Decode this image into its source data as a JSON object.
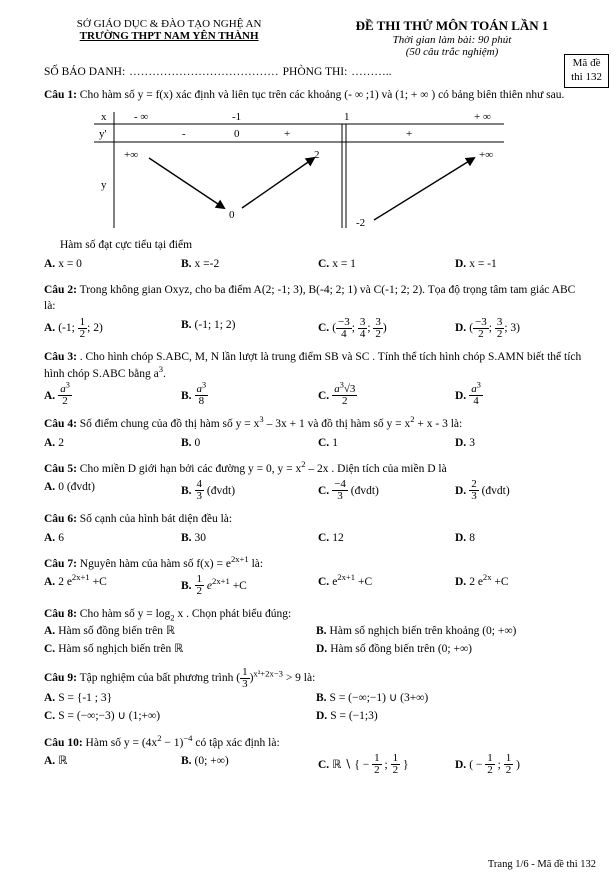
{
  "header": {
    "dept": "SỞ GIÁO DỤC & ĐÀO TẠO NGHỆ AN",
    "school": "TRƯỜNG THPT NAM YÊN THÀNH",
    "title": "ĐỀ THI THỬ MÔN TOÁN LẦN 1",
    "time": "Thời gian làm bài:  90 phút",
    "count": "(50 câu trắc nghiệm)"
  },
  "exam_row": {
    "sbd": "SỐ BÁO DANH:",
    "sbd_fill": "…………………………………",
    "phong": "PHÒNG THI:",
    "phong_fill": "………..",
    "madebox_l1": "Mã đề",
    "madebox_l2": "thi 132"
  },
  "chart": {
    "x_label": "x",
    "yp_label": "y'",
    "y_label": "y",
    "cols": [
      "- ∞",
      "-1",
      "1",
      "+ ∞"
    ],
    "signs": [
      "-",
      "0",
      "+",
      "+"
    ],
    "plus_inf": "+∞",
    "neg2": "-2",
    "zero": "0",
    "two": "2",
    "line_color": "#000"
  },
  "q1": {
    "label": "Câu 1:",
    "text": " Cho hàm số y = f(x) xác định và liên tục trên các khoảng (- ∞ ;1) và (1; + ∞ ) có bảng biên thiên như sau.",
    "sub": "Hàm số đạt cực tiểu tại điểm",
    "A": "x = 0",
    "B": "x =-2",
    "C": "x = 1",
    "D": "x = -1"
  },
  "q2": {
    "label": "Câu 2:",
    "text": " Trong không gian Oxyz, cho ba điểm A(2; -1; 3), B(-4; 2; 1) và C(-1; 2; 2). Tọa độ trọng tâm tam giác ABC là:",
    "A_html": "(-1; <span class=\"frac\"><span class=\"n\">1</span><span class=\"d\">2</span></span>; 2)",
    "B_html": "(-1; 1; 2)",
    "C_html": "(<span class=\"frac\"><span class=\"n\">−3</span><span class=\"d\">4</span></span>; <span class=\"frac\"><span class=\"n\">3</span><span class=\"d\">4</span></span>; <span class=\"frac\"><span class=\"n\">3</span><span class=\"d\">2</span></span>)",
    "D_html": "(<span class=\"frac\"><span class=\"n\">−3</span><span class=\"d\">2</span></span>; <span class=\"frac\"><span class=\"n\">3</span><span class=\"d\">2</span></span>; 3)"
  },
  "q3": {
    "label": "Câu 3:",
    "text": " . Cho hình chóp S.ABC, M, N lần lượt là trung điểm SB và SC . Tính thể tích hình chóp S.AMN biết thể tích hình chóp S.ABC bằng a",
    "sup": "3",
    "text2": ".",
    "A_html": "<span class=\"frac\"><span class=\"n\"><i>a</i><sup>3</sup></span><span class=\"d\">2</span></span>",
    "B_html": "<span class=\"frac\"><span class=\"n\"><i>a</i><sup>3</sup></span><span class=\"d\">8</span></span>",
    "C_html": "<span class=\"frac\"><span class=\"n\"><i>a</i><sup>3</sup>√3</span><span class=\"d\">2</span></span>",
    "D_html": "<span class=\"frac\"><span class=\"n\"><i>a</i><sup>3</sup></span><span class=\"d\">4</span></span>"
  },
  "q4": {
    "label": "Câu 4:",
    "text": " Số điểm chung của đồ thị hàm số y = x",
    "sup1": "3",
    "text2": " – 3x + 1 và đồ thị hàm số y = x",
    "sup2": "2",
    "text3": " + x  - 3 là:",
    "A": "2",
    "B": "0",
    "C": "1",
    "D": "3"
  },
  "q5": {
    "label": "Câu 5:",
    "text": " Cho miền D giới hạn bởi các đường y = 0, y = x",
    "sup": "2",
    "text2": " – 2x . Diện tích của miền D là",
    "A": "0 (đvdt)",
    "B_html": "<span class=\"frac\"><span class=\"n\">4</span><span class=\"d\">3</span></span> (đvdt)",
    "C_html": "<span class=\"frac\"><span class=\"n\">−4</span><span class=\"d\">3</span></span> (đvdt)",
    "D_html": "<span class=\"frac\"><span class=\"n\">2</span><span class=\"d\">3</span></span> (đvdt)"
  },
  "q6": {
    "label": "Câu 6:",
    "text": " Số cạnh của hình bát diện đều là:",
    "A": "6",
    "B": "30",
    "C": "12",
    "D": "8"
  },
  "q7": {
    "label": "Câu 7:",
    "text": " Nguyên hàm của hàm số f(x) = e",
    "sup": "2x+1",
    "text2": " là:",
    "A_html": "2 e<sup>2x+1</sup> +C",
    "B_html": "<span class=\"frac\"><span class=\"n\">1</span><span class=\"d\">2</span></span> <i>e</i><sup>2x+1</sup> +C",
    "C_html": "e<sup>2x+1</sup> +C",
    "D_html": "2 e<sup>2x</sup> +C"
  },
  "q8": {
    "label": "Câu 8:",
    "text": " Cho hàm số  y = log",
    "sub": "2",
    "text2": " x . Chọn phát biểu đúng:",
    "A": "Hàm số đồng biến trên  ℝ",
    "B": "Hàm số nghịch biến trên khoảng (0; +∞)",
    "C": "Hàm số nghịch biến trên  ℝ",
    "D": "Hàm số đồng biến trên (0; +∞)"
  },
  "q9": {
    "label": "Câu 9:",
    "text": " Tập nghiệm của bất phương trình  (",
    "frac_html": "<span class=\"frac\"><span class=\"n\">1</span><span class=\"d\">3</span></span>",
    "text2": ")",
    "sup": "x²+2x−3",
    "text3": " > 9 là:",
    "A": "S = {-1 ; 3}",
    "B": "S = (−∞;−1) ∪ (3+∞)",
    "C": "S = (−∞;−3) ∪ (1;+∞)",
    "D": "S = (−1;3)"
  },
  "q10": {
    "label": "Câu 10:",
    "text": " Hàm số y = (4x",
    "sup1": "2",
    "text2": " − 1)",
    "sup2": "−4",
    "text3": "  có tập xác định là:",
    "A": "ℝ",
    "B": "(0; +∞)",
    "C_html": "ℝ ∖ { − <span class=\"frac\"><span class=\"n\">1</span><span class=\"d\">2</span></span> ; <span class=\"frac\"><span class=\"n\">1</span><span class=\"d\">2</span></span> }",
    "D_html": "( − <span class=\"frac\"><span class=\"n\">1</span><span class=\"d\">2</span></span> ; <span class=\"frac\"><span class=\"n\">1</span><span class=\"d\">2</span></span> )"
  },
  "footer": "Trang 1/6 - Mã đề thi 132"
}
